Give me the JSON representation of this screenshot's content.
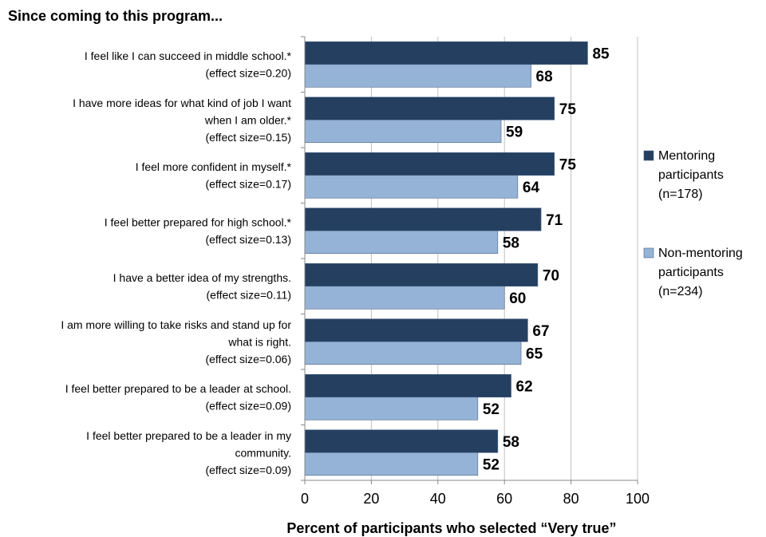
{
  "chart_data": {
    "type": "bar",
    "orientation": "horizontal",
    "title": "Since coming to this program...",
    "xlabel": "Percent of participants who selected “Very true”",
    "xlim": [
      0,
      100
    ],
    "xticks": [
      0,
      20,
      40,
      60,
      80,
      100
    ],
    "grid": true,
    "legend_position": "right",
    "categories": [
      [
        "I feel like I can succeed in middle school.*",
        "(effect size=0.20)"
      ],
      [
        "I have more ideas for what kind of job I want",
        "when I am older.*",
        "(effect size=0.15)"
      ],
      [
        "I feel more confident in myself.*",
        "(effect size=0.17)"
      ],
      [
        "I feel better prepared for high school.*",
        "(effect size=0.13)"
      ],
      [
        "I have a better idea of my strengths.",
        "(effect size=0.11)"
      ],
      [
        "I am more willing to take risks and stand up for",
        "what is right.",
        "(effect size=0.06)"
      ],
      [
        "I feel better prepared to be a leader at school.",
        "(effect size=0.09)"
      ],
      [
        "I feel better prepared to be a leader in my",
        "community.",
        "(effect size=0.09)"
      ]
    ],
    "series": [
      {
        "name": [
          "Mentoring",
          "participants",
          "(n=178)"
        ],
        "color": "#243f60",
        "values": [
          85,
          75,
          75,
          71,
          70,
          67,
          62,
          58
        ]
      },
      {
        "name": [
          "Non-mentoring",
          "participants",
          "(n=234)"
        ],
        "color": "#95b3d7",
        "values": [
          68,
          59,
          64,
          58,
          60,
          65,
          52,
          52
        ]
      }
    ]
  }
}
